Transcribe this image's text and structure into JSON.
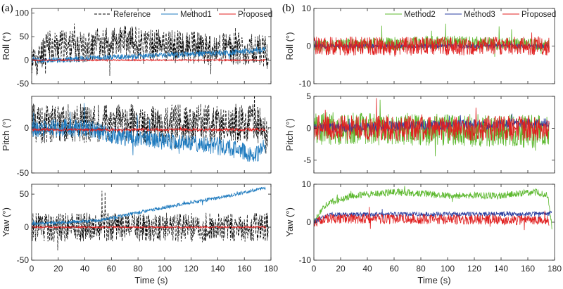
{
  "panel_labels": [
    "(a)",
    "(b)"
  ],
  "chart_data": [
    {
      "type": "line",
      "id": "a-roll",
      "xlabel": "",
      "ylabel": "Roll (°)",
      "xlim": [
        0,
        180
      ],
      "ylim": [
        -50,
        110
      ],
      "yticks": [
        -50,
        0,
        50,
        100
      ],
      "xticks": [],
      "legend": {
        "placement": "top-right",
        "entries": [
          "Reference",
          "Method1",
          "Proposed"
        ]
      },
      "series": [
        {
          "name": "Reference",
          "color": "#000000",
          "dash": true,
          "values_desc": "noisy",
          "x_end": 178,
          "trend": [
            [
              0,
              0
            ],
            [
              5,
              0
            ],
            [
              10,
              30
            ],
            [
              40,
              30
            ],
            [
              70,
              40
            ],
            [
              100,
              30
            ],
            [
              130,
              25
            ],
            [
              160,
              25
            ],
            [
              175,
              20
            ],
            [
              178,
              15
            ]
          ],
          "amp": 35,
          "seed": 11
        },
        {
          "name": "Method1",
          "color": "#1f7bbf",
          "dash": false,
          "x_end": 176,
          "trend": [
            [
              0,
              0
            ],
            [
              20,
              0
            ],
            [
              50,
              5
            ],
            [
              100,
              10
            ],
            [
              140,
              15
            ],
            [
              170,
              20
            ],
            [
              176,
              25
            ]
          ],
          "amp": 6,
          "seed": 12
        },
        {
          "name": "Proposed",
          "color": "#e02020",
          "dash": false,
          "x_end": 176,
          "trend": [
            [
              0,
              0
            ],
            [
              176,
              0
            ]
          ],
          "amp": 1.5,
          "seed": 13
        }
      ]
    },
    {
      "type": "line",
      "id": "a-pitch",
      "xlabel": "",
      "ylabel": "Pitch (°)",
      "xlim": [
        0,
        180
      ],
      "ylim": [
        -50,
        35
      ],
      "yticks": [
        -50,
        0
      ],
      "xticks": [],
      "series": [
        {
          "name": "Reference",
          "color": "#000000",
          "dash": true,
          "x_end": 178,
          "trend": [
            [
              0,
              5
            ],
            [
              170,
              5
            ],
            [
              178,
              -10
            ]
          ],
          "amp": 22,
          "seed": 21
        },
        {
          "name": "Method1",
          "color": "#1f7bbf",
          "dash": false,
          "x_end": 176,
          "trend": [
            [
              0,
              0
            ],
            [
              40,
              0
            ],
            [
              60,
              -8
            ],
            [
              100,
              -15
            ],
            [
              140,
              -20
            ],
            [
              170,
              -30
            ],
            [
              176,
              -20
            ]
          ],
          "amp": 10,
          "seed": 22
        },
        {
          "name": "Proposed",
          "color": "#e02020",
          "dash": false,
          "x_end": 176,
          "trend": [
            [
              0,
              -2
            ],
            [
              176,
              -2
            ]
          ],
          "amp": 1.5,
          "seed": 23
        }
      ]
    },
    {
      "type": "line",
      "id": "a-yaw",
      "xlabel": "Time (s)",
      "ylabel": "Yaw (°)",
      "xlim": [
        0,
        180
      ],
      "ylim": [
        -50,
        65
      ],
      "yticks": [
        -50,
        0,
        50
      ],
      "xticks": [
        0,
        20,
        40,
        60,
        80,
        100,
        120,
        140,
        160,
        180
      ],
      "series": [
        {
          "name": "Reference",
          "color": "#000000",
          "dash": true,
          "x_end": 178,
          "trend": [
            [
              0,
              0
            ],
            [
              178,
              0
            ]
          ],
          "amp": 22,
          "seed": 31
        },
        {
          "name": "Method1",
          "color": "#1f7bbf",
          "dash": false,
          "x_end": 176,
          "trend": [
            [
              0,
              5
            ],
            [
              50,
              10
            ],
            [
              100,
              30
            ],
            [
              150,
              48
            ],
            [
              176,
              60
            ]
          ],
          "amp": 2.5,
          "seed": 32
        },
        {
          "name": "Proposed",
          "color": "#e02020",
          "dash": false,
          "x_end": 176,
          "trend": [
            [
              0,
              0
            ],
            [
              176,
              0
            ]
          ],
          "amp": 1.2,
          "seed": 33
        }
      ]
    },
    {
      "type": "line",
      "id": "b-roll",
      "xlabel": "",
      "ylabel": "Roll (°)",
      "xlim": [
        0,
        180
      ],
      "ylim": [
        -10,
        10
      ],
      "yticks": [
        -10,
        0,
        10
      ],
      "xticks": [],
      "legend": {
        "placement": "top-right",
        "entries": [
          "Method2",
          "Method3",
          "Proposed"
        ]
      },
      "series": [
        {
          "name": "Method2",
          "color": "#5cb82e",
          "dash": false,
          "x_end": 176,
          "trend": [
            [
              0,
              0
            ],
            [
              50,
              0.5
            ],
            [
              100,
              1
            ],
            [
              150,
              0.5
            ],
            [
              176,
              0
            ]
          ],
          "amp": 1.8,
          "seed": 41
        },
        {
          "name": "Method3",
          "color": "#2a3ea0",
          "dash": false,
          "x_end": 176,
          "trend": [
            [
              0,
              0
            ],
            [
              176,
              0
            ]
          ],
          "amp": 0.6,
          "seed": 42
        },
        {
          "name": "Proposed",
          "color": "#e02020",
          "dash": false,
          "x_end": 176,
          "trend": [
            [
              0,
              0
            ],
            [
              176,
              0
            ]
          ],
          "amp": 2.5,
          "seed": 43
        }
      ]
    },
    {
      "type": "line",
      "id": "b-pitch",
      "xlabel": "",
      "ylabel": "Pitch (°)",
      "xlim": [
        0,
        180
      ],
      "ylim": [
        -7,
        5
      ],
      "yticks": [
        -5,
        0,
        5
      ],
      "xticks": [],
      "series": [
        {
          "name": "Method2",
          "color": "#5cb82e",
          "dash": false,
          "x_end": 176,
          "trend": [
            [
              0,
              0
            ],
            [
              176,
              -0.5
            ]
          ],
          "amp": 2.6,
          "seed": 51
        },
        {
          "name": "Method3",
          "color": "#2a3ea0",
          "dash": false,
          "x_end": 176,
          "trend": [
            [
              0,
              0
            ],
            [
              100,
              0.5
            ],
            [
              176,
              0.8
            ]
          ],
          "amp": 0.8,
          "seed": 52
        },
        {
          "name": "Proposed",
          "color": "#e02020",
          "dash": false,
          "x_end": 176,
          "trend": [
            [
              0,
              0
            ],
            [
              176,
              0
            ]
          ],
          "amp": 2.0,
          "seed": 53
        }
      ]
    },
    {
      "type": "line",
      "id": "b-yaw",
      "xlabel": "Time (s)",
      "ylabel": "Yaw (°)",
      "xlim": [
        0,
        180
      ],
      "ylim": [
        -10,
        10
      ],
      "yticks": [
        -10,
        0,
        10
      ],
      "xticks": [
        0,
        20,
        40,
        60,
        80,
        100,
        120,
        140,
        160,
        180
      ],
      "series": [
        {
          "name": "Method2",
          "color": "#5cb82e",
          "dash": false,
          "x_end": 178,
          "trend": [
            [
              0,
              0
            ],
            [
              10,
              5
            ],
            [
              30,
              7
            ],
            [
              60,
              8
            ],
            [
              100,
              7
            ],
            [
              140,
              7
            ],
            [
              165,
              8
            ],
            [
              175,
              7
            ],
            [
              178,
              -1
            ]
          ],
          "amp": 0.9,
          "seed": 61
        },
        {
          "name": "Method3",
          "color": "#2a3ea0",
          "dash": false,
          "x_end": 178,
          "trend": [
            [
              0,
              0
            ],
            [
              10,
              2
            ],
            [
              176,
              2.2
            ],
            [
              178,
              3
            ]
          ],
          "amp": 0.6,
          "seed": 62
        },
        {
          "name": "Proposed",
          "color": "#e02020",
          "dash": false,
          "x_end": 176,
          "trend": [
            [
              0,
              0
            ],
            [
              10,
              1
            ],
            [
              176,
              0.5
            ]
          ],
          "amp": 1.3,
          "seed": 63
        }
      ]
    }
  ]
}
